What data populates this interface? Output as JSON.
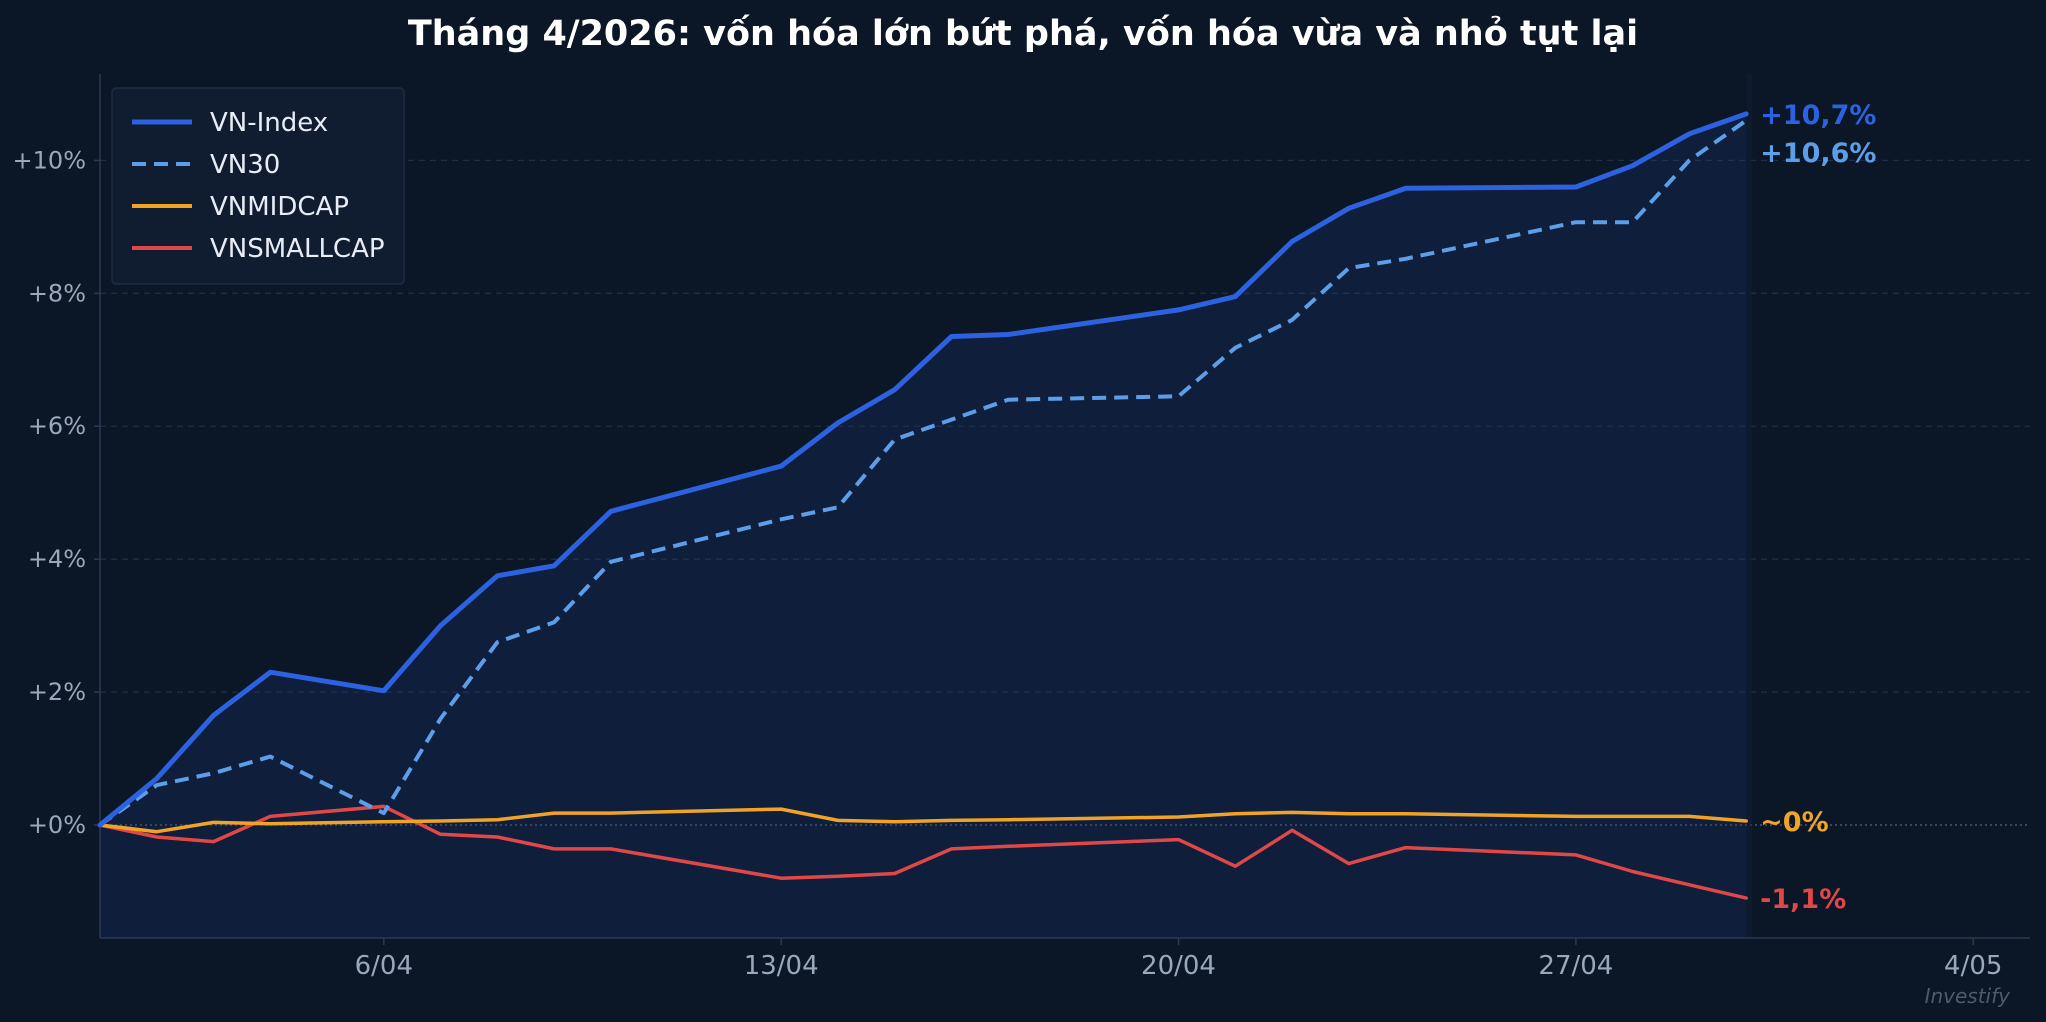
{
  "chart_data": {
    "type": "line",
    "title": "Tháng 4/2026: vốn hóa lớn bứt phá, vốn hóa vừa và nhỏ tụt lại",
    "xlabel": "",
    "ylabel": "",
    "x": [
      "2026-04-01",
      "2026-04-02",
      "2026-04-03",
      "2026-04-04",
      "2026-04-06",
      "2026-04-07",
      "2026-04-08",
      "2026-04-09",
      "2026-04-10",
      "2026-04-13",
      "2026-04-14",
      "2026-04-15",
      "2026-04-16",
      "2026-04-17",
      "2026-04-20",
      "2026-04-21",
      "2026-04-22",
      "2026-04-23",
      "2026-04-24",
      "2026-04-27",
      "2026-04-28",
      "2026-04-29",
      "2026-04-30"
    ],
    "xlim": [
      "2026-04-01",
      "2026-05-05"
    ],
    "ylim": [
      -1.7,
      11.3
    ],
    "yticks": [
      0,
      2,
      4,
      6,
      8,
      10
    ],
    "ytick_labels": [
      "+0%",
      "+2%",
      "+4%",
      "+6%",
      "+8%",
      "+10%"
    ],
    "xticks": [
      "2026-04-06",
      "2026-04-13",
      "2026-04-20",
      "2026-04-27",
      "2026-05-04"
    ],
    "xtick_labels": [
      "6/04",
      "13/04",
      "20/04",
      "27/04",
      "4/05"
    ],
    "grid": "horizontal dashed",
    "legend_position": "top-left",
    "series": [
      {
        "name": "VN-Index",
        "color": "#2c62e0",
        "style": "solid",
        "fill_area": true,
        "end_label": "+10,7%",
        "values": [
          0,
          0.7,
          1.65,
          2.3,
          2.02,
          3.0,
          3.75,
          3.9,
          4.72,
          5.4,
          6.05,
          6.55,
          7.35,
          7.38,
          7.75,
          7.95,
          8.78,
          9.28,
          9.58,
          9.6,
          9.92,
          10.4,
          10.7
        ]
      },
      {
        "name": "VN30",
        "color": "#5d9ee8",
        "style": "dashed",
        "end_label": "+10,6%",
        "values": [
          0,
          0.6,
          0.78,
          1.03,
          0.18,
          1.6,
          2.75,
          3.05,
          3.96,
          4.6,
          4.78,
          5.8,
          6.1,
          6.4,
          6.45,
          7.18,
          7.6,
          8.38,
          8.52,
          9.07,
          9.07,
          10.0,
          10.6
        ]
      },
      {
        "name": "VNMIDCAP",
        "color": "#f0a326",
        "style": "solid",
        "end_label": "~0%",
        "values": [
          0,
          -0.1,
          0.04,
          0.02,
          0.05,
          0.06,
          0.08,
          0.18,
          0.18,
          0.24,
          0.07,
          0.05,
          0.07,
          0.08,
          0.12,
          0.17,
          0.19,
          0.17,
          0.17,
          0.13,
          0.13,
          0.13,
          0.06
        ]
      },
      {
        "name": "VNSMALLCAP",
        "color": "#e04848",
        "style": "solid",
        "end_label": "-1,1%",
        "values": [
          0,
          -0.18,
          -0.25,
          0.13,
          0.28,
          -0.14,
          -0.18,
          -0.36,
          -0.36,
          -0.8,
          -0.77,
          -0.73,
          -0.36,
          -0.32,
          -0.22,
          -0.62,
          -0.08,
          -0.58,
          -0.34,
          -0.45,
          -0.7,
          -0.9,
          -1.1
        ]
      }
    ]
  },
  "watermark": "Investify"
}
